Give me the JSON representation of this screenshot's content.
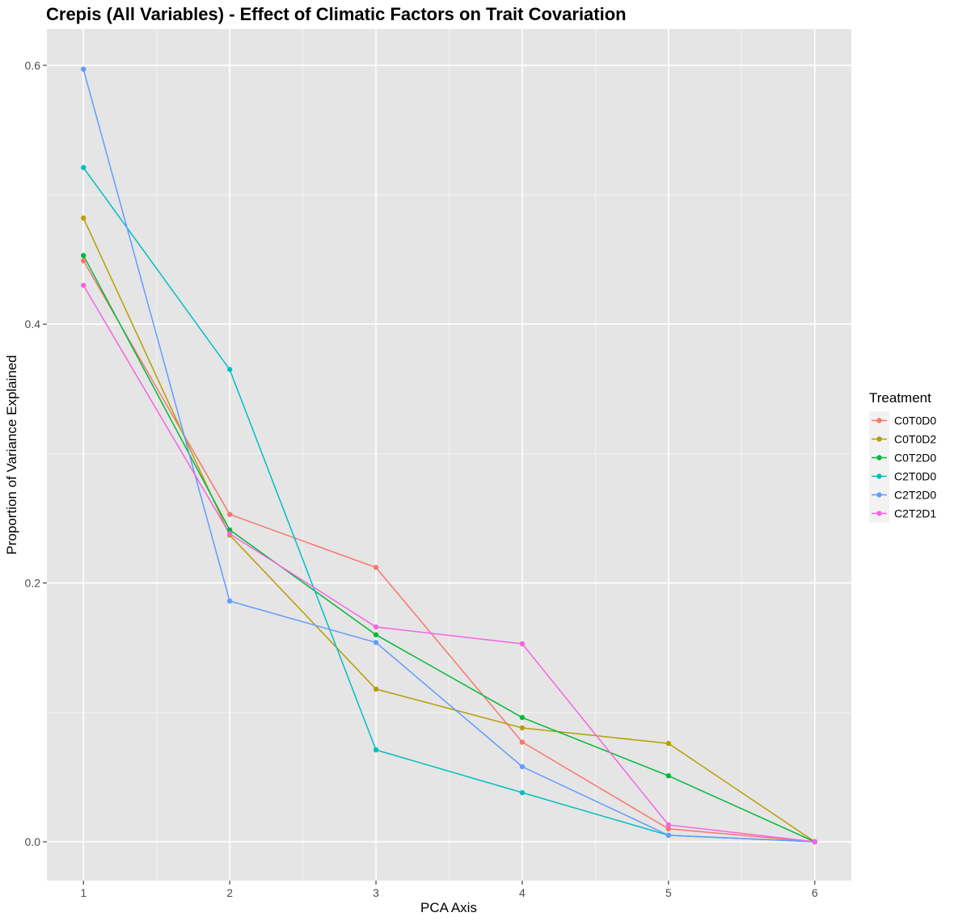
{
  "chart_data": {
    "type": "line",
    "title": "Crepis (All Variables) - Effect of Climatic Factors on Trait Covariation",
    "xlabel": "PCA Axis",
    "ylabel": "Proportion of Variance Explained",
    "x": [
      1,
      2,
      3,
      4,
      5,
      6
    ],
    "xlim": [
      0.75,
      6.25
    ],
    "ylim": [
      -0.03,
      0.628
    ],
    "xticks": [
      "1",
      "2",
      "3",
      "4",
      "5",
      "6"
    ],
    "yticks": [
      "0.0",
      "0.2",
      "0.4",
      "0.6"
    ],
    "grid": true,
    "legend_title": "Treatment",
    "legend_position": "right",
    "background": "#e5e5e5",
    "series": [
      {
        "name": "C0T0D0",
        "color": "#f8766d",
        "values": [
          0.449,
          0.253,
          0.212,
          0.077,
          0.01,
          0.0
        ]
      },
      {
        "name": "C0T0D2",
        "color": "#b79f00",
        "values": [
          0.482,
          0.237,
          0.118,
          0.088,
          0.076,
          0.0
        ]
      },
      {
        "name": "C0T2D0",
        "color": "#00ba38",
        "values": [
          0.453,
          0.241,
          0.16,
          0.096,
          0.051,
          0.0
        ]
      },
      {
        "name": "C2T0D0",
        "color": "#00bfc4",
        "values": [
          0.521,
          0.365,
          0.071,
          0.038,
          0.005,
          0.0
        ]
      },
      {
        "name": "C2T2D0",
        "color": "#619cff",
        "values": [
          0.597,
          0.186,
          0.154,
          0.058,
          0.005,
          0.0
        ]
      },
      {
        "name": "C2T2D1",
        "color": "#f564e3",
        "values": [
          0.43,
          0.238,
          0.166,
          0.153,
          0.013,
          0.0
        ]
      }
    ]
  }
}
